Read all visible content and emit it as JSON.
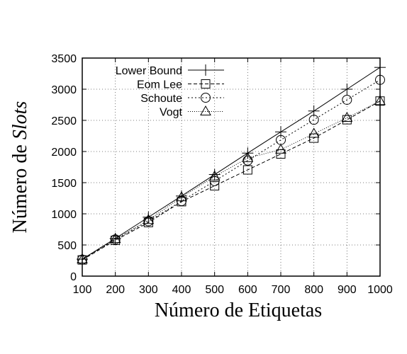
{
  "chart_data": {
    "type": "line",
    "xlabel": "Número de Etiquetas",
    "ylabel_prefix": "Número de ",
    "ylabel_italic": "Slots",
    "x": [
      100,
      200,
      300,
      400,
      500,
      600,
      700,
      800,
      900,
      1000
    ],
    "xlim": [
      100,
      1000
    ],
    "ylim": [
      0,
      3500
    ],
    "xticks": [
      "100",
      "200",
      "300",
      "400",
      "500",
      "600",
      "700",
      "800",
      "900",
      "1000"
    ],
    "yticks": [
      "0",
      "500",
      "1000",
      "1500",
      "2000",
      "2500",
      "3000",
      "3500"
    ],
    "grid": true,
    "legend_position": "top-left",
    "series": [
      {
        "name": "Lower Bound",
        "marker": "plus",
        "dash": "",
        "values": [
          272,
          605,
          946,
          1286,
          1630,
          1975,
          2315,
          2650,
          3000,
          3350
        ]
      },
      {
        "name": "Eom Lee",
        "marker": "square",
        "dash": "5,3",
        "values": [
          260,
          575,
          860,
          1195,
          1450,
          1705,
          1960,
          2215,
          2510,
          2810
        ]
      },
      {
        "name": "Schoute",
        "marker": "circle",
        "dash": "2,3",
        "values": [
          265,
          590,
          880,
          1205,
          1525,
          1855,
          2185,
          2510,
          2830,
          3150
        ]
      },
      {
        "name": "Vogt",
        "marker": "triangle",
        "dash": "1,2",
        "values": [
          268,
          595,
          900,
          1265,
          1600,
          1895,
          2030,
          2285,
          2540,
          2810
        ]
      }
    ]
  }
}
